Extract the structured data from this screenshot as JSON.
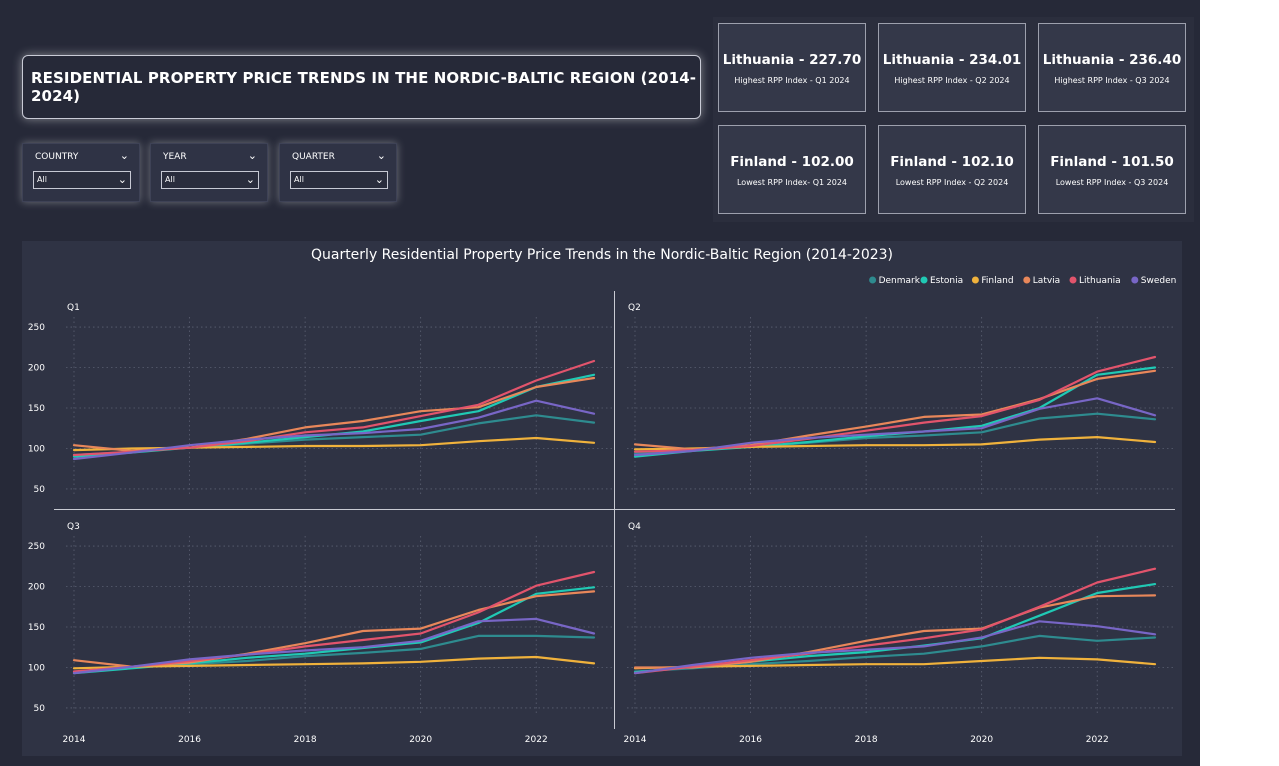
{
  "header": {
    "title": "RESIDENTIAL PROPERTY PRICE TRENDS IN THE NORDIC-BALTIC REGION (2014-2024)"
  },
  "filters": [
    {
      "label": "COUNTRY",
      "value": "All"
    },
    {
      "label": "YEAR",
      "value": "All"
    },
    {
      "label": "QUARTER",
      "value": "All"
    }
  ],
  "kpis": {
    "highest": [
      {
        "value": "Lithuania - 227.70",
        "label": "Highest RPP Index - Q1 2024"
      },
      {
        "value": "Lithuania - 234.01",
        "label": "Highest RPP Index - Q2 2024"
      },
      {
        "value": "Lithuania - 236.40",
        "label": "Highest RPP Index - Q3 2024"
      }
    ],
    "lowest": [
      {
        "value": "Finland - 102.00",
        "label": "Lowest RPP Index- Q1 2024"
      },
      {
        "value": "Finland - 102.10",
        "label": "Lowest RPP Index - Q2 2024"
      },
      {
        "value": "Finland - 101.50",
        "label": "Lowest RPP Index - Q3 2024"
      }
    ]
  },
  "icons": {
    "dropdown": "chevron-down-icon"
  },
  "colors": {
    "background": "#262938",
    "panel": "#2f3344",
    "Denmark": "#2e8b8f",
    "Estonia": "#20c9b4",
    "Finland": "#f0b23c",
    "Latvia": "#e8875a",
    "Lithuania": "#e2546c",
    "Sweden": "#7866c6"
  },
  "chart_data": {
    "type": "line",
    "title": "Quarterly Residential Property Price Trends in the Nordic-Baltic Region (2014-2023)",
    "legend": [
      "Denmark",
      "Estonia",
      "Finland",
      "Latvia",
      "Lithuania",
      "Sweden"
    ],
    "legend_position": "top-right",
    "layout": "small multiples 2x2 by quarter",
    "grid": true,
    "x": [
      2014,
      2015,
      2016,
      2017,
      2018,
      2019,
      2020,
      2021,
      2022,
      2023
    ],
    "x_ticks": [
      2014,
      2016,
      2018,
      2020,
      2022
    ],
    "y_ticks": [
      50,
      100,
      150,
      200,
      250
    ],
    "ylim": [
      45,
      255
    ],
    "panels": [
      {
        "label": "Q1",
        "series": [
          {
            "name": "Denmark",
            "values": [
              92,
              96,
              101,
              106,
              111,
              114,
              117,
              131,
              141,
              132
            ]
          },
          {
            "name": "Estonia",
            "values": [
              90,
              95,
              101,
              107,
              114,
              121,
              134,
              146,
              176,
              191
            ]
          },
          {
            "name": "Finland",
            "values": [
              98,
              100,
              101,
              102,
              103,
              103,
              104,
              109,
              113,
              107
            ]
          },
          {
            "name": "Latvia",
            "values": [
              104,
              97,
              101,
              112,
              126,
              134,
              146,
              151,
              176,
              187
            ]
          },
          {
            "name": "Lithuania",
            "values": [
              92,
              96,
              101,
              109,
              120,
              126,
              140,
              154,
              184,
              208
            ]
          },
          {
            "name": "Sweden",
            "values": [
              87,
              95,
              104,
              111,
              116,
              119,
              124,
              138,
              159,
              143
            ]
          }
        ]
      },
      {
        "label": "Q2",
        "series": [
          {
            "name": "Denmark",
            "values": [
              94,
              98,
              102,
              107,
              113,
              116,
              120,
              137,
              143,
              136
            ]
          },
          {
            "name": "Estonia",
            "values": [
              90,
              97,
              102,
              108,
              115,
              121,
              128,
              150,
              191,
              200
            ]
          },
          {
            "name": "Finland",
            "values": [
              99,
              100,
              102,
              103,
              104,
              104,
              105,
              111,
              114,
              108
            ]
          },
          {
            "name": "Latvia",
            "values": [
              105,
              99,
              104,
              116,
              127,
              139,
              142,
              161,
              186,
              196
            ]
          },
          {
            "name": "Lithuania",
            "values": [
              96,
              98,
              103,
              112,
              122,
              132,
              140,
              160,
              195,
              213
            ]
          },
          {
            "name": "Sweden",
            "values": [
              92,
              97,
              107,
              113,
              117,
              121,
              125,
              149,
              162,
              141
            ]
          }
        ]
      },
      {
        "label": "Q3",
        "series": [
          {
            "name": "Denmark",
            "values": [
              94,
              100,
              104,
              108,
              114,
              118,
              123,
              139,
              139,
              137
            ]
          },
          {
            "name": "Estonia",
            "values": [
              93,
              99,
              105,
              112,
              117,
              124,
              131,
              155,
              191,
              199
            ]
          },
          {
            "name": "Finland",
            "values": [
              99,
              101,
              102,
              103,
              104,
              105,
              107,
              111,
              113,
              105
            ]
          },
          {
            "name": "Latvia",
            "values": [
              109,
              101,
              106,
              117,
              130,
              145,
              148,
              171,
              188,
              194
            ]
          },
          {
            "name": "Lithuania",
            "values": [
              95,
              101,
              108,
              116,
              126,
              134,
              142,
              168,
              201,
              218
            ]
          },
          {
            "name": "Sweden",
            "values": [
              93,
              101,
              110,
              116,
              121,
              125,
              133,
              157,
              160,
              142
            ]
          }
        ]
      },
      {
        "label": "Q4",
        "series": [
          {
            "name": "Denmark",
            "values": [
              95,
              99,
              104,
              108,
              113,
              117,
              126,
              139,
              133,
              137
            ]
          },
          {
            "name": "Estonia",
            "values": [
              94,
              101,
              107,
              114,
              119,
              127,
              136,
              164,
              192,
              203
            ]
          },
          {
            "name": "Finland",
            "values": [
              99,
              101,
              102,
              103,
              104,
              104,
              108,
              112,
              110,
              104
            ]
          },
          {
            "name": "Latvia",
            "values": [
              100,
              100,
              107,
              119,
              133,
              145,
              148,
              174,
              188,
              189
            ]
          },
          {
            "name": "Lithuania",
            "values": [
              93,
              101,
              109,
              117,
              127,
              136,
              147,
              175,
              205,
              222
            ]
          },
          {
            "name": "Sweden",
            "values": [
              93,
              103,
              112,
              118,
              122,
              126,
              137,
              157,
              151,
              141
            ]
          }
        ]
      }
    ]
  }
}
